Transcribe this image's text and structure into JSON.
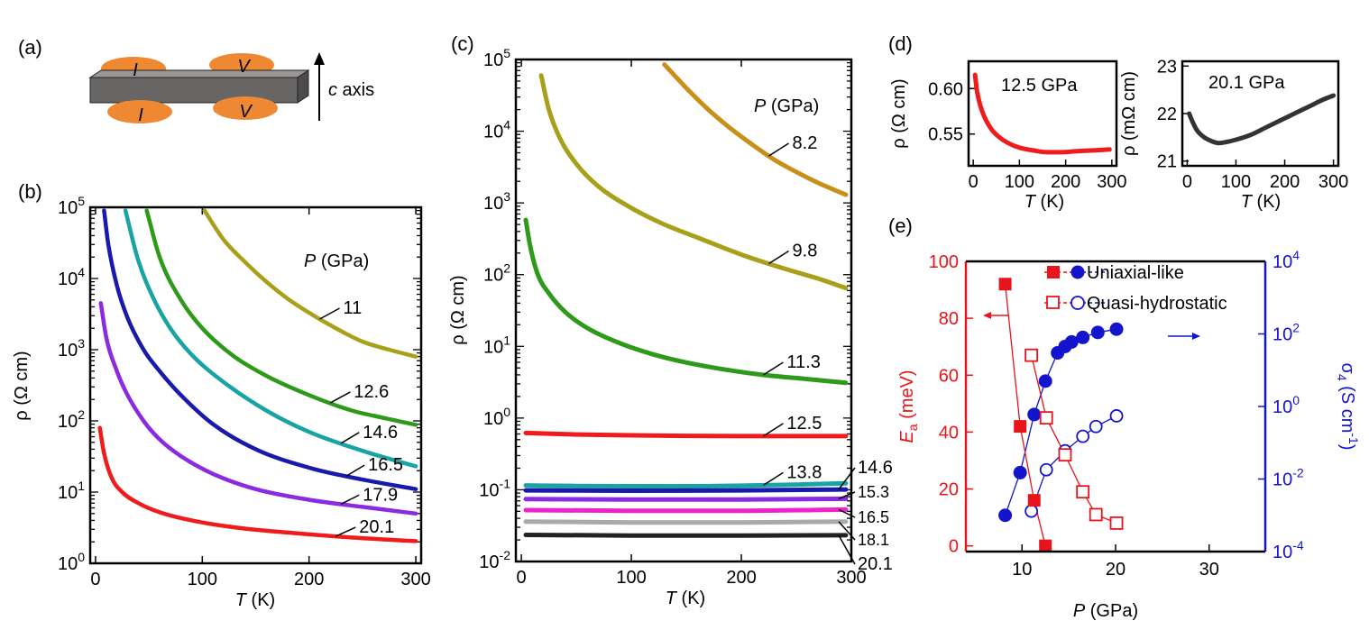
{
  "panels": {
    "a": {
      "label": "(a)",
      "contact_top_left": "I",
      "contact_top_right": "V",
      "contact_bottom_left": "I",
      "contact_bottom_right": "V",
      "axis_letter": "c",
      "axis_word": " axis"
    },
    "b": {
      "label": "(b)",
      "p_label": "P",
      "p_unit": " (GPa)"
    },
    "c": {
      "label": "(c)",
      "p_label": "P",
      "p_unit": " (GPa)"
    },
    "d": {
      "label": "(d)"
    },
    "e": {
      "label": "(e)"
    }
  },
  "chart_data": [
    {
      "id": "b",
      "type": "line",
      "xlabel_sym": "T",
      "xlabel_unit": " (K)",
      "ylabel": "ρ (Ω cm)",
      "y_scale": "log",
      "xlim": [
        -5,
        305
      ],
      "ylim": [
        1,
        100000
      ],
      "xticks": [
        0,
        100,
        200,
        300
      ],
      "yticks_exp": [
        0,
        1,
        2,
        3,
        4,
        5
      ],
      "series": [
        {
          "name": "11",
          "color": "#a8a01a",
          "x": [
            102,
            120,
            140,
            160,
            180,
            200,
            220,
            250,
            275,
            300
          ],
          "y": [
            90000,
            35000,
            17000,
            9000,
            5200,
            3300,
            2200,
            1300,
            1000,
            800
          ]
        },
        {
          "name": "12.6",
          "color": "#2e9a1a",
          "x": [
            48,
            60,
            80,
            100,
            130,
            160,
            200,
            240,
            270,
            300
          ],
          "y": [
            90000,
            20000,
            5000,
            2000,
            800,
            430,
            230,
            140,
            110,
            88
          ]
        },
        {
          "name": "14.6",
          "color": "#19a3a3",
          "x": [
            28,
            40,
            55,
            70,
            90,
            120,
            160,
            200,
            250,
            300
          ],
          "y": [
            90000,
            18000,
            5000,
            2000,
            850,
            350,
            140,
            70,
            38,
            23
          ]
        },
        {
          "name": "16.5",
          "color": "#1a1aaa",
          "x": [
            8,
            12,
            20,
            30,
            45,
            60,
            80,
            110,
            150,
            200,
            250,
            300
          ],
          "y": [
            90000,
            30000,
            8000,
            2800,
            1000,
            500,
            230,
            90,
            40,
            22,
            15,
            11
          ]
        },
        {
          "name": "17.9",
          "color": "#8a2be2",
          "x": [
            5,
            10,
            20,
            30,
            45,
            60,
            80,
            110,
            150,
            200,
            250,
            300
          ],
          "y": [
            4500,
            1500,
            500,
            230,
            100,
            55,
            32,
            18,
            11,
            7.8,
            6.2,
            5
          ]
        },
        {
          "name": "20.1",
          "color": "#ee1c1c",
          "x": [
            4,
            8,
            15,
            25,
            40,
            60,
            90,
            130,
            180,
            240,
            300
          ],
          "y": [
            80,
            35,
            16,
            10,
            7,
            5.2,
            4,
            3.2,
            2.7,
            2.3,
            2.05
          ]
        }
      ]
    },
    {
      "id": "c",
      "type": "line",
      "xlabel_sym": "T",
      "xlabel_unit": " (K)",
      "ylabel": "ρ (Ω cm)",
      "y_scale": "log",
      "xlim": [
        -5,
        300
      ],
      "ylim": [
        0.01,
        100000
      ],
      "xticks": [
        0,
        100,
        200,
        300
      ],
      "yticks_exp": [
        -2,
        -1,
        0,
        1,
        2,
        3,
        4,
        5
      ],
      "series": [
        {
          "name": "8.2",
          "color": "#c8901a",
          "x": [
            130,
            150,
            170,
            190,
            210,
            230,
            250,
            270,
            295
          ],
          "y": [
            85000,
            40000,
            20000,
            11000,
            6500,
            4000,
            2700,
            1900,
            1300
          ]
        },
        {
          "name": "9.8",
          "color": "#a8a01a",
          "x": [
            18,
            25,
            35,
            50,
            70,
            100,
            130,
            160,
            200,
            240,
            270,
            295
          ],
          "y": [
            60000,
            20000,
            8000,
            3500,
            1700,
            850,
            500,
            330,
            190,
            120,
            88,
            65
          ]
        },
        {
          "name": "11.3",
          "color": "#2e9a1a",
          "x": [
            4,
            8,
            15,
            25,
            40,
            60,
            90,
            130,
            170,
            220,
            260,
            295
          ],
          "y": [
            580,
            250,
            100,
            55,
            30,
            18,
            11,
            7,
            5.2,
            4,
            3.5,
            3.1
          ]
        },
        {
          "name": "12.5",
          "color": "#ee1c1c",
          "x": [
            4,
            50,
            100,
            150,
            200,
            250,
            295
          ],
          "y": [
            0.62,
            0.59,
            0.575,
            0.565,
            0.56,
            0.56,
            0.56
          ]
        },
        {
          "name": "13.8",
          "color": "#19a3a3",
          "x": [
            4,
            50,
            100,
            150,
            200,
            250,
            295
          ],
          "y": [
            0.115,
            0.113,
            0.112,
            0.112,
            0.114,
            0.118,
            0.123
          ]
        },
        {
          "name": "14.6",
          "color": "#1a1aaa",
          "x": [
            4,
            100,
            200,
            295
          ],
          "y": [
            0.098,
            0.097,
            0.098,
            0.101
          ]
        },
        {
          "name": "15.3",
          "color": "#8a2be2",
          "x": [
            4,
            100,
            200,
            295
          ],
          "y": [
            0.074,
            0.073,
            0.073,
            0.075
          ]
        },
        {
          "name": "16.5",
          "color": "#ee22cc",
          "x": [
            4,
            100,
            200,
            295
          ],
          "y": [
            0.052,
            0.051,
            0.051,
            0.053
          ]
        },
        {
          "name": "18.1",
          "color": "#aaaaaa",
          "x": [
            4,
            100,
            200,
            295
          ],
          "y": [
            0.036,
            0.035,
            0.035,
            0.036
          ]
        },
        {
          "name": "20.1",
          "color": "#222222",
          "x": [
            4,
            100,
            200,
            295
          ],
          "y": [
            0.0235,
            0.023,
            0.023,
            0.0232
          ]
        }
      ]
    },
    {
      "id": "d1",
      "type": "line",
      "annotation": "12.5 GPa",
      "xlabel_sym": "T",
      "xlabel_unit": " (K)",
      "ylabel": "ρ (Ω cm)",
      "xlim": [
        -10,
        310
      ],
      "ylim": [
        0.515,
        0.63
      ],
      "xticks": [
        0,
        100,
        200,
        300
      ],
      "yticks": [
        0.55,
        0.6
      ],
      "ytick_labels": [
        "0.55",
        "0.60"
      ],
      "series": [
        {
          "color": "#ee1c1c",
          "x": [
            4,
            8,
            15,
            25,
            40,
            60,
            80,
            100,
            130,
            160,
            190,
            220,
            260,
            295
          ],
          "y": [
            0.615,
            0.598,
            0.582,
            0.568,
            0.555,
            0.545,
            0.539,
            0.535,
            0.532,
            0.53,
            0.53,
            0.531,
            0.532,
            0.533
          ]
        }
      ]
    },
    {
      "id": "d2",
      "type": "line",
      "annotation": "20.1 GPa",
      "xlabel_sym": "T",
      "xlabel_unit": " (K)",
      "ylabel": "ρ (mΩ cm)",
      "xlim": [
        -10,
        310
      ],
      "ylim": [
        20.9,
        23.1
      ],
      "xticks": [
        0,
        100,
        200,
        300
      ],
      "yticks": [
        21,
        22,
        23
      ],
      "ytick_labels": [
        "21",
        "22",
        "23"
      ],
      "series": [
        {
          "color": "#333333",
          "x": [
            4,
            10,
            20,
            35,
            50,
            65,
            80,
            100,
            130,
            160,
            190,
            220,
            250,
            280,
            300
          ],
          "y": [
            22.0,
            21.85,
            21.65,
            21.5,
            21.42,
            21.38,
            21.4,
            21.45,
            21.55,
            21.7,
            21.85,
            22.0,
            22.15,
            22.3,
            22.38
          ]
        }
      ]
    },
    {
      "id": "e",
      "type": "scatter",
      "xlabel_sym": "P",
      "xlabel_unit": " (GPa)",
      "ylabel_left_sym": "E",
      "ylabel_left_sub": "a",
      "ylabel_left_unit": " (meV)",
      "ylabel_right_sym": "σ",
      "ylabel_right_sub": "4",
      "ylabel_right_unit": " (S cm",
      "ylabel_right_exp": "-1",
      "ylabel_right_close": ")",
      "xlim": [
        4,
        36
      ],
      "ylim_left": [
        -2,
        100
      ],
      "ylim_right_exp": [
        -4,
        4
      ],
      "xticks": [
        10,
        20,
        30
      ],
      "yticks_left": [
        0,
        20,
        40,
        60,
        80,
        100
      ],
      "yticks_right_exp": [
        -4,
        -2,
        0,
        2,
        4
      ],
      "left_color": "#e8141c",
      "right_color": "#1414cc",
      "legend": [
        {
          "label": "Uniaxial-like"
        },
        {
          "label": "Quasi-hydrostatic"
        }
      ],
      "Ea_uniaxial": {
        "x": [
          8.2,
          9.8,
          11.3,
          12.5
        ],
        "y": [
          92,
          42,
          16,
          0
        ]
      },
      "Ea_quasi": {
        "x": [
          11.0,
          12.6,
          14.6,
          16.5,
          17.9,
          20.1
        ],
        "y": [
          67,
          45,
          32,
          19,
          11,
          8
        ]
      },
      "sigma_uniaxial": {
        "x": [
          8.2,
          9.8,
          11.3,
          12.5,
          13.8,
          14.6,
          15.3,
          16.5,
          18.1,
          20.1
        ],
        "y": [
          0.001,
          0.015,
          0.6,
          5,
          30,
          45,
          60,
          80,
          110,
          135
        ]
      },
      "sigma_quasi": {
        "x": [
          11.0,
          12.6,
          14.6,
          16.5,
          17.9,
          20.1
        ],
        "y": [
          0.0013,
          0.018,
          0.06,
          0.15,
          0.28,
          0.55
        ]
      }
    }
  ]
}
